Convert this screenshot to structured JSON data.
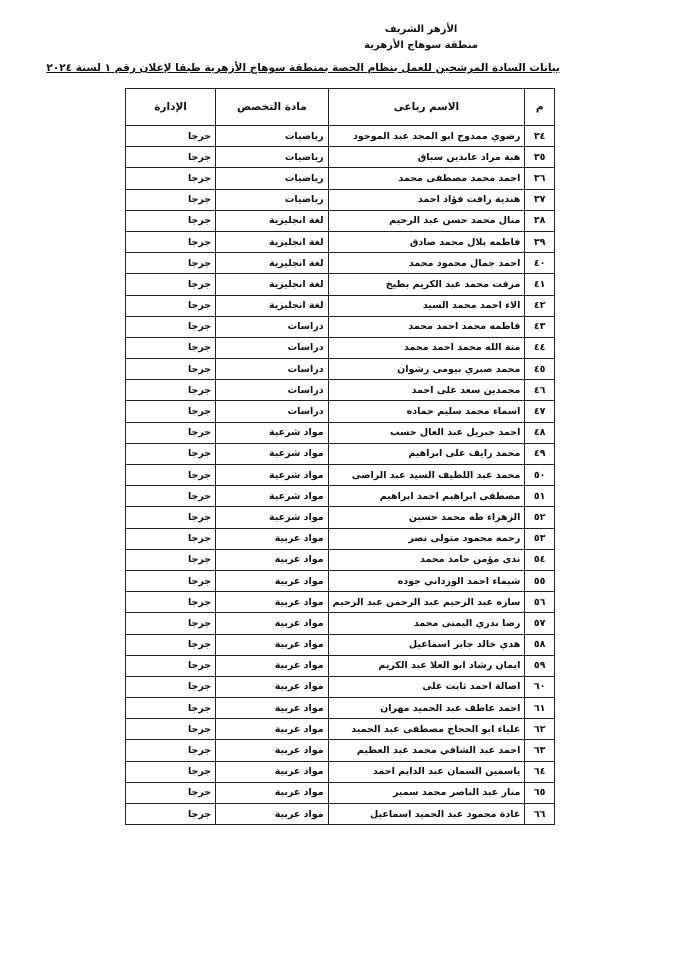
{
  "header": {
    "org": "الأزهر الشريف",
    "region": "منطقة سوهاج الأزهرية",
    "title": "بيانات السادة المرشحين للعمل بنظام الحصة بمنطقة سوهاج الأزهرية طبقا لإعلان رقم ١ لسنة ٢٠٢٤"
  },
  "table": {
    "columns": [
      "م",
      "الاسم رباعى",
      "مادة التخصص",
      "الإدارة"
    ],
    "rows": [
      [
        "٣٤",
        "رضوي ممدوح ابو المجد عبد الموجود",
        "رياضيات",
        "جرجا"
      ],
      [
        "٣٥",
        "هبة مراد عابدين سباق",
        "رياضيات",
        "جرجا"
      ],
      [
        "٣٦",
        "احمد محمد مصطفى محمد",
        "رياضيات",
        "جرجا"
      ],
      [
        "٣٧",
        "هندية رافت فؤاد احمد",
        "رياضيات",
        "جرجا"
      ],
      [
        "٣٨",
        "منال محمد حسن عبد الرحيم",
        "لغة انجليزية",
        "جرجا"
      ],
      [
        "٣٩",
        "فاطمه بلال محمد صادق",
        "لغة انجليزية",
        "جرجا"
      ],
      [
        "٤٠",
        "احمد جمال محمود محمد",
        "لغة انجليزية",
        "جرجا"
      ],
      [
        "٤١",
        "مرفت محمد عبد الكريم بطيخ",
        "لغة انجليزية",
        "جرجا"
      ],
      [
        "٤٢",
        "الاء احمد محمد السيد",
        "لغة انجليزية",
        "جرجا"
      ],
      [
        "٤٣",
        "فاطمه محمد احمد محمد",
        "دراسات",
        "جرجا"
      ],
      [
        "٤٤",
        "منة الله محمد احمد محمد",
        "دراسات",
        "جرجا"
      ],
      [
        "٤٥",
        "محمد صبري بيومى رشوان",
        "دراسات",
        "جرجا"
      ],
      [
        "٤٦",
        "محمدين سعد على احمد",
        "دراسات",
        "جرجا"
      ],
      [
        "٤٧",
        "اسماء محمد سليم حماده",
        "دراسات",
        "جرجا"
      ],
      [
        "٤٨",
        "احمد جبريل عبد العال حسب",
        "مواد شرعية",
        "جرجا"
      ],
      [
        "٤٩",
        "محمد رايف على ابراهيم",
        "مواد شرعية",
        "جرجا"
      ],
      [
        "٥٠",
        "محمد عبد اللطيف السيد عبد الراضى",
        "مواد شرعية",
        "جرجا"
      ],
      [
        "٥١",
        "مصطفى ابراهيم احمد ابراهيم",
        "مواد شرعية",
        "جرجا"
      ],
      [
        "٥٢",
        "الزهراء طه محمد حسين",
        "مواد شرعية",
        "جرجا"
      ],
      [
        "٥٣",
        "رحمه محمود متولى نصر",
        "مواد عربية",
        "جرجا"
      ],
      [
        "٥٤",
        "ندى مؤمن حامد محمد",
        "مواد عربية",
        "جرجا"
      ],
      [
        "٥٥",
        "شيماء احمد الورداني جوده",
        "مواد عربية",
        "جرجا"
      ],
      [
        "٥٦",
        "ساره عبد الرحيم عبد الرحمن عبد الرحيم",
        "مواد عربية",
        "جرجا"
      ],
      [
        "٥٧",
        "رضا بدري اليمنى محمد",
        "مواد عربية",
        "جرجا"
      ],
      [
        "٥٨",
        "هدي خالد جابر اسماعيل",
        "مواد عربية",
        "جرجا"
      ],
      [
        "٥٩",
        "ايمان رشاد ابو العلا عبد الكريم",
        "مواد عربية",
        "جرجا"
      ],
      [
        "٦٠",
        "اصالة احمد ثابت على",
        "مواد عربية",
        "جرجا"
      ],
      [
        "٦١",
        "احمد عاطف عبد الحميد مهران",
        "مواد عربية",
        "جرجا"
      ],
      [
        "٦٢",
        "علياء ابو الحجاج مصطفى عبد الحميد",
        "مواد عربية",
        "جرجا"
      ],
      [
        "٦٣",
        "احمد عبد الشافي محمد عبد العظيم",
        "مواد عربية",
        "جرجا"
      ],
      [
        "٦٤",
        "ياسمين السمان عبد الدايم احمد",
        "مواد عربية",
        "جرجا"
      ],
      [
        "٦٥",
        "منار عبد الناصر محمد سمير",
        "مواد عربية",
        "جرجا"
      ],
      [
        "٦٦",
        "غادة محمود عبد الحميد اسماعيل",
        "مواد عربية",
        "جرجا"
      ]
    ]
  }
}
